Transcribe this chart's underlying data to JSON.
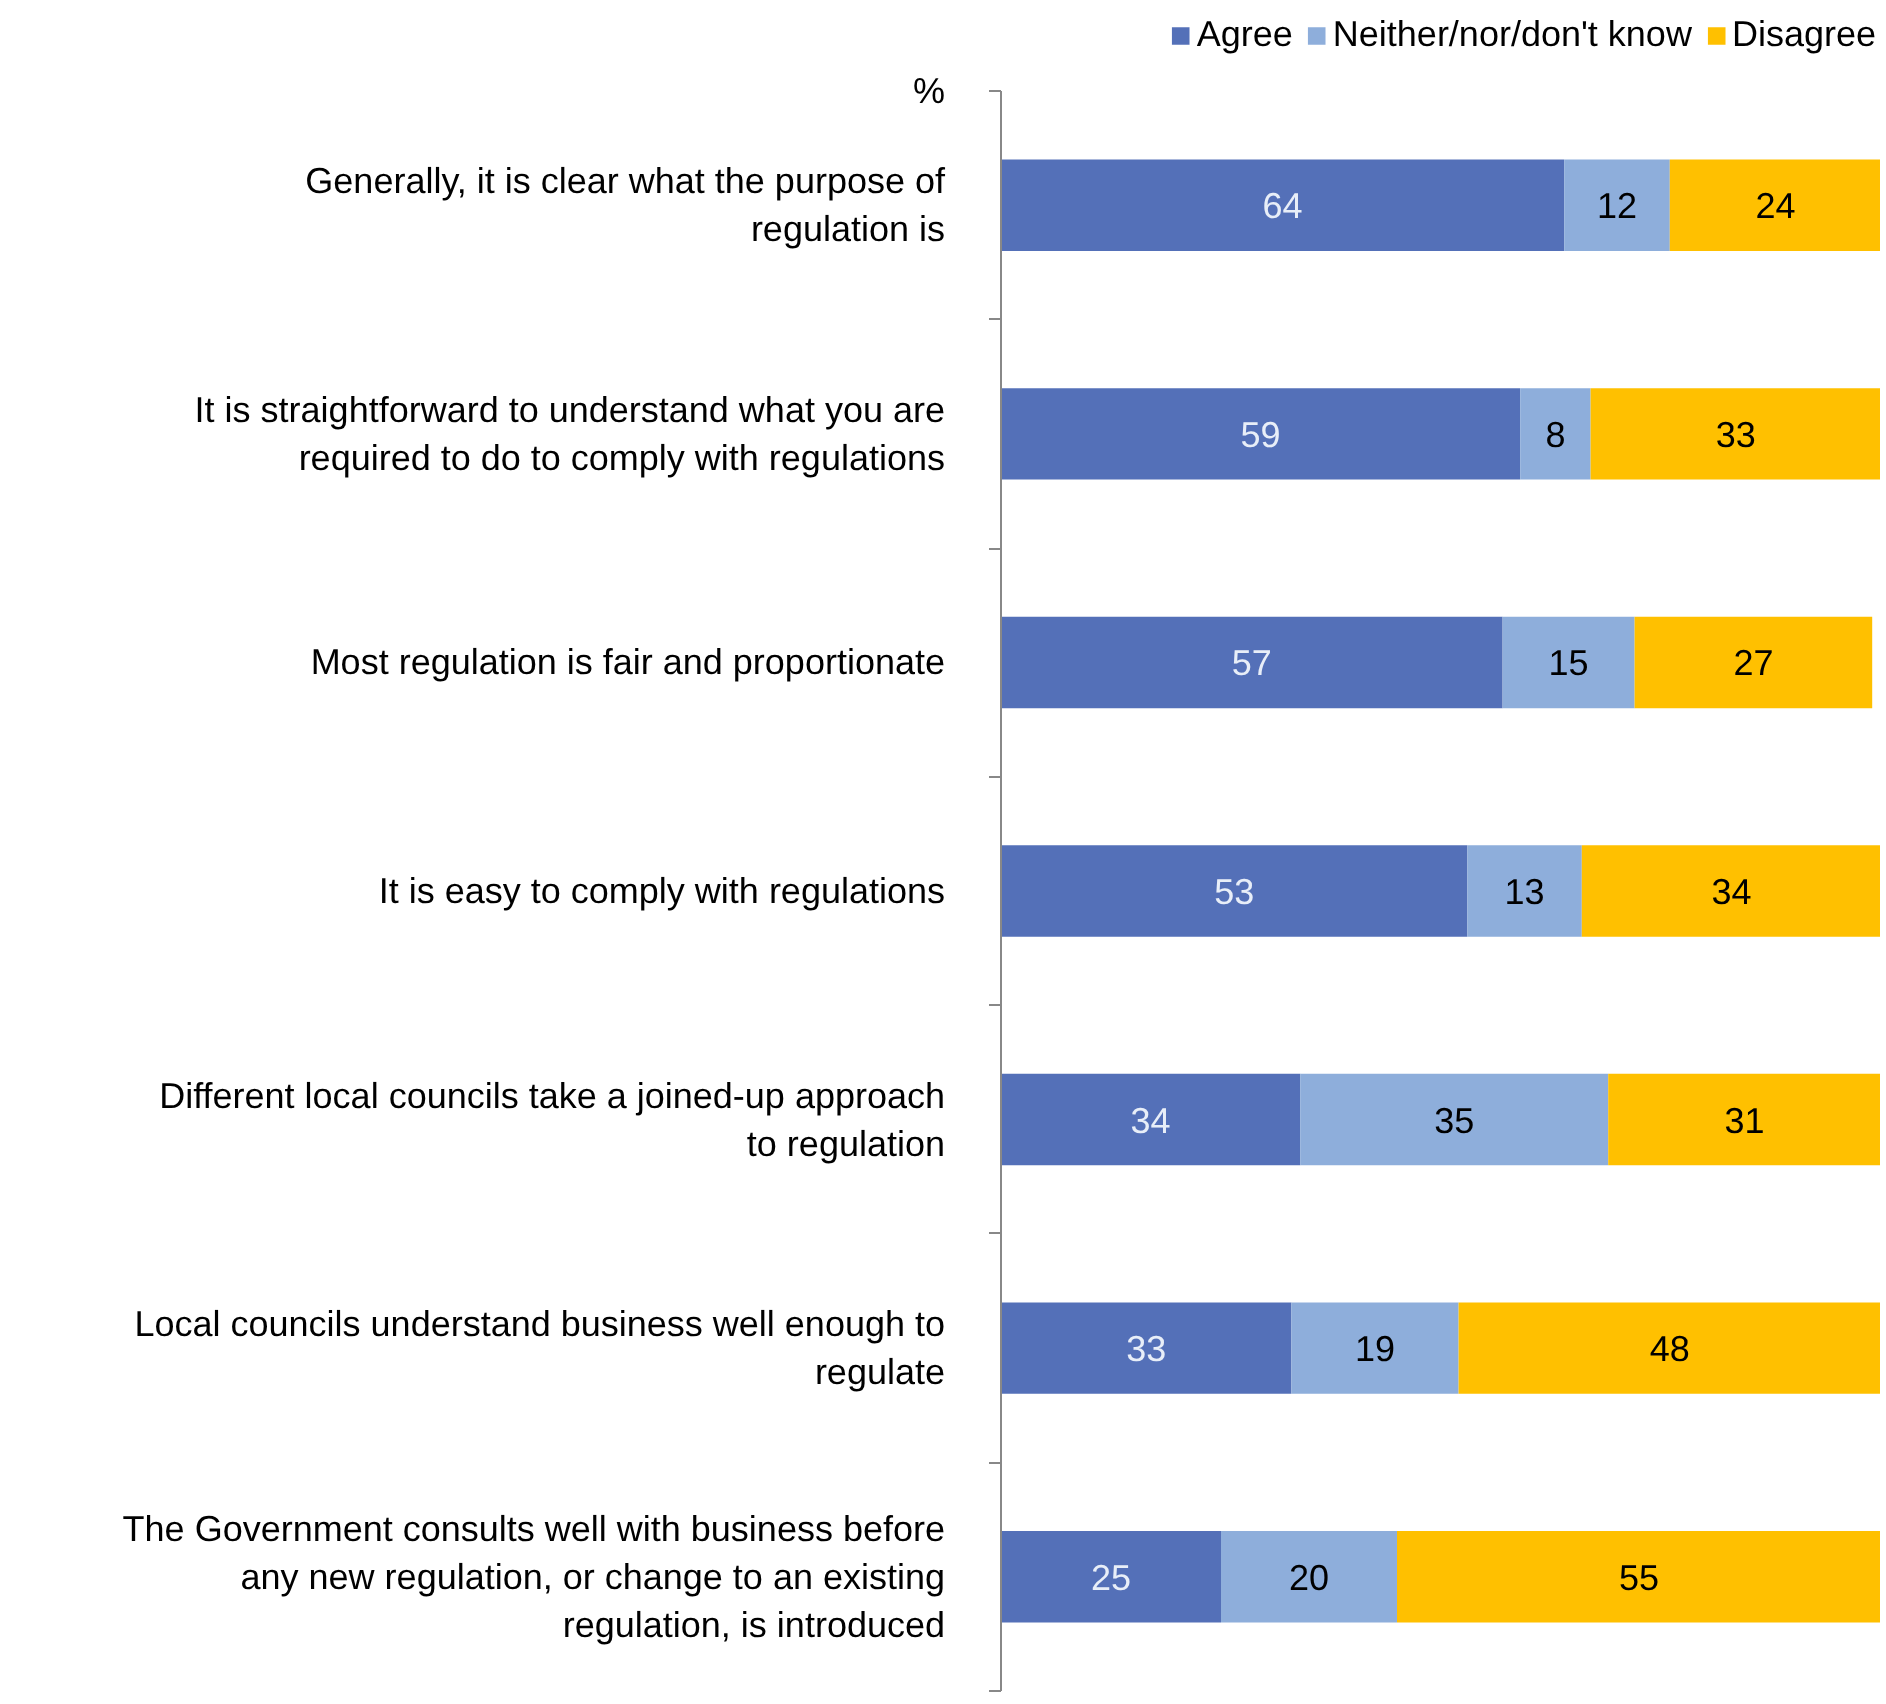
{
  "chart_data": {
    "type": "bar",
    "orientation": "horizontal",
    "stacked": true,
    "data_labels": true,
    "legend": "top right",
    "grid": false,
    "annotations": [
      "%"
    ],
    "categories": [
      "Generally, it is clear what the purpose of regulation is",
      "It is straightforward to understand what you are required to do to comply with regulations",
      "Most regulation is fair and proportionate",
      "It is easy to comply with regulations",
      "Different local councils take a joined-up approach to regulation",
      "Local councils understand business well enough to regulate",
      "The Government consults well with business before any new regulation, or change to an existing regulation, is introduced"
    ],
    "series": [
      {
        "name": "Agree",
        "color": "#5470b8",
        "values": [
          64,
          59,
          57,
          53,
          34,
          33,
          25
        ]
      },
      {
        "name": "Neither/nor/don't know",
        "color": "#8eaedb",
        "values": [
          12,
          8,
          15,
          13,
          35,
          19,
          20
        ]
      },
      {
        "name": "Disagree",
        "color": "#ffc000",
        "values": [
          24,
          33,
          27,
          34,
          31,
          48,
          55
        ]
      }
    ]
  }
}
